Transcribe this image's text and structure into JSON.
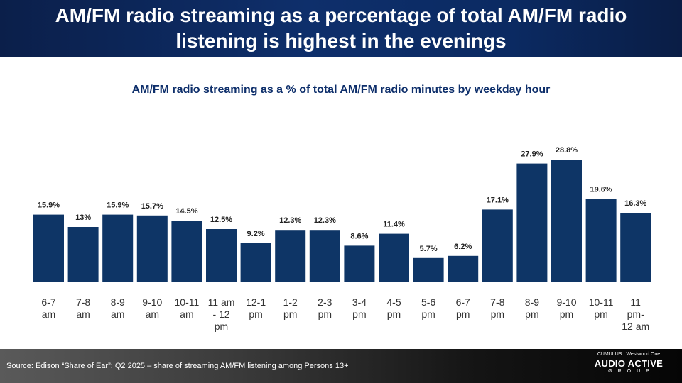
{
  "header": {
    "title": "AM/FM radio streaming as a percentage of total AM/FM radio listening is highest in the evenings"
  },
  "chart_data": {
    "type": "bar",
    "title": "AM/FM radio streaming as a % of total AM/FM radio minutes by weekday hour",
    "categories": [
      "6-7 am",
      "7-8 am",
      "8-9 am",
      "9-10 am",
      "10-11 am",
      "11 am - 12 pm",
      "12-1 pm",
      "1-2 pm",
      "2-3 pm",
      "3-4 pm",
      "4-5 pm",
      "5-6 pm",
      "6-7 pm",
      "7-8 pm",
      "8-9 pm",
      "9-10 pm",
      "10-11 pm",
      "11 pm- 12 am"
    ],
    "values": [
      15.9,
      13,
      15.9,
      15.7,
      14.5,
      12.5,
      9.2,
      12.3,
      12.3,
      8.6,
      11.4,
      5.7,
      6.2,
      17.1,
      27.9,
      28.8,
      19.6,
      16.3
    ],
    "data_labels": [
      "15.9%",
      "13%",
      "15.9%",
      "15.7%",
      "14.5%",
      "12.5%",
      "9.2%",
      "12.3%",
      "12.3%",
      "8.6%",
      "11.4%",
      "5.7%",
      "6.2%",
      "17.1%",
      "27.9%",
      "28.8%",
      "19.6%",
      "16.3%"
    ],
    "bar_color": "#0e3566",
    "ylim": [
      0,
      32
    ],
    "grid": false,
    "legend": "none"
  },
  "footer": {
    "source": "Source: Edison “Share of Ear”: Q2 2025 – share of streaming AM/FM listening among Persons 13+"
  },
  "logo": {
    "top_left": "CUMULUS",
    "top_right": "Westwood One",
    "main": "AUDIO ACTIVE",
    "sub": "GROUP"
  }
}
